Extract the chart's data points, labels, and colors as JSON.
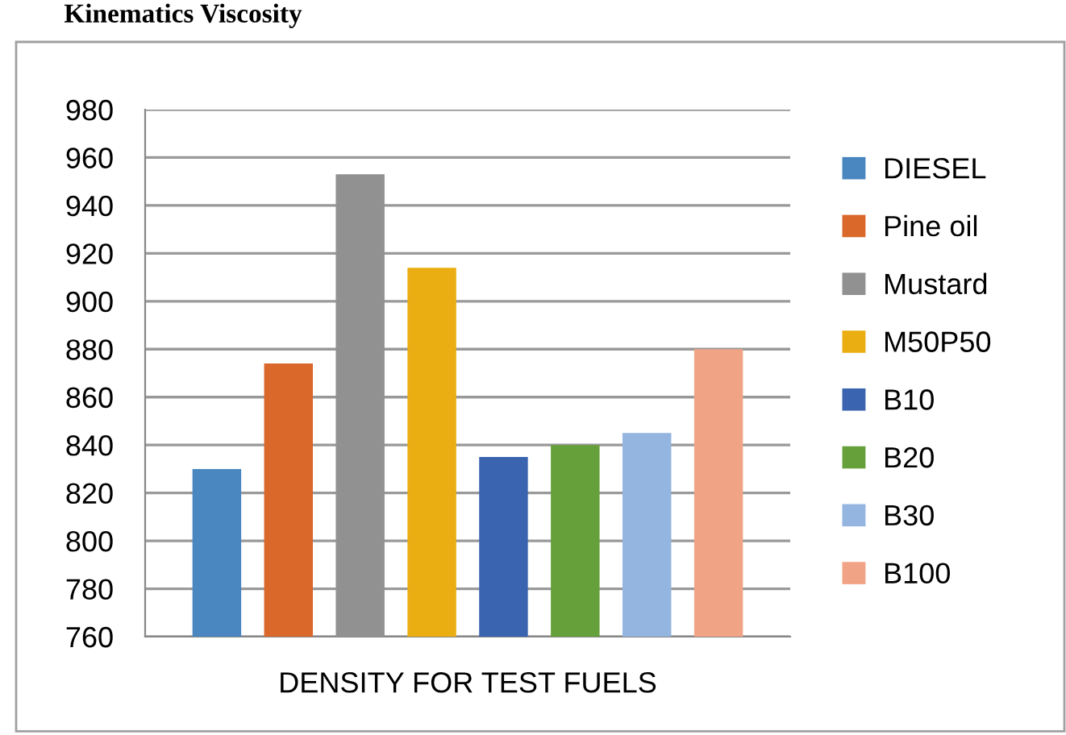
{
  "chart_data": {
    "type": "bar",
    "xlabel": "DENSITY FOR TEST FUELS",
    "annotations": [
      "Kinematics Viscosity"
    ],
    "categories": [
      null
    ],
    "series": [
      {
        "name": "DIESEL",
        "color": "#4a87c0",
        "values": [
          830
        ]
      },
      {
        "name": "Pine oil",
        "color": "#d9682a",
        "values": [
          874
        ]
      },
      {
        "name": "Mustard",
        "color": "#919191",
        "values": [
          953
        ]
      },
      {
        "name": "M50P50",
        "color": "#eaae12",
        "values": [
          914
        ]
      },
      {
        "name": "B10",
        "color": "#3a64b0",
        "values": [
          835
        ]
      },
      {
        "name": "B20",
        "color": "#65a03a",
        "values": [
          840
        ]
      },
      {
        "name": "B30",
        "color": "#93b5e0",
        "values": [
          845
        ]
      },
      {
        "name": "B100",
        "color": "#f1a485",
        "values": [
          880
        ]
      }
    ],
    "ylim": [
      760,
      980
    ],
    "yticks": [
      760,
      780,
      800,
      820,
      840,
      860,
      880,
      900,
      920,
      940,
      960,
      980
    ],
    "grid": "y",
    "legend": "right"
  }
}
